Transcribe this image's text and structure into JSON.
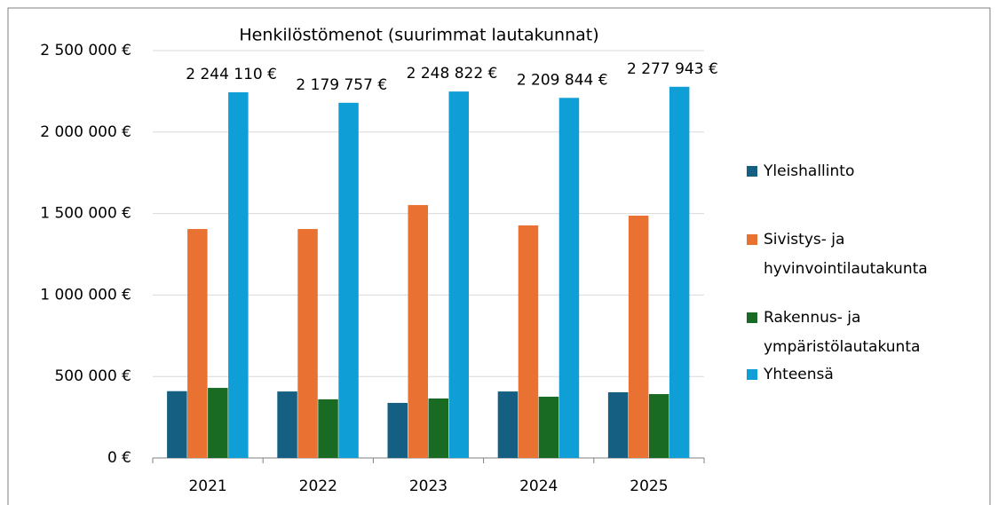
{
  "chart_data": {
    "type": "bar",
    "title": "Henkilöstömenot (suurimmat lautakunnat)",
    "categories": [
      "2021",
      "2022",
      "2023",
      "2024",
      "2025"
    ],
    "series": [
      {
        "name": "Yleishallinto",
        "color": "#156082",
        "values": [
          410000,
          408000,
          338000,
          408000,
          403000
        ]
      },
      {
        "name": "Sivistys- ja hyvinvointilautakunta",
        "color": "#e97132",
        "values": [
          1405000,
          1405000,
          1552000,
          1427000,
          1487000
        ]
      },
      {
        "name": "Rakennus- ja ympäristölautakunta",
        "color": "#196b24",
        "values": [
          430000,
          360000,
          365000,
          376000,
          392000
        ]
      },
      {
        "name": "Yhteensä",
        "color": "#0f9ed5",
        "values": [
          2244110,
          2179757,
          2248822,
          2209844,
          2277943
        ],
        "value_labels": [
          "2 244 110 €",
          "2 179 757 €",
          "2 248 822 €",
          "2 209 844 €",
          "2 277 943 €"
        ]
      }
    ],
    "ylim": [
      0,
      2500000
    ],
    "yticks": [
      {
        "value": 0,
        "label": "0 €"
      },
      {
        "value": 500000,
        "label": "500 000 €"
      },
      {
        "value": 1000000,
        "label": "1 000 000 €"
      },
      {
        "value": 1500000,
        "label": "1 500 000 €"
      },
      {
        "value": 2000000,
        "label": "2 000 000 €"
      },
      {
        "value": 2500000,
        "label": "2 500 000 €"
      }
    ],
    "grid": true,
    "legend": "right"
  }
}
